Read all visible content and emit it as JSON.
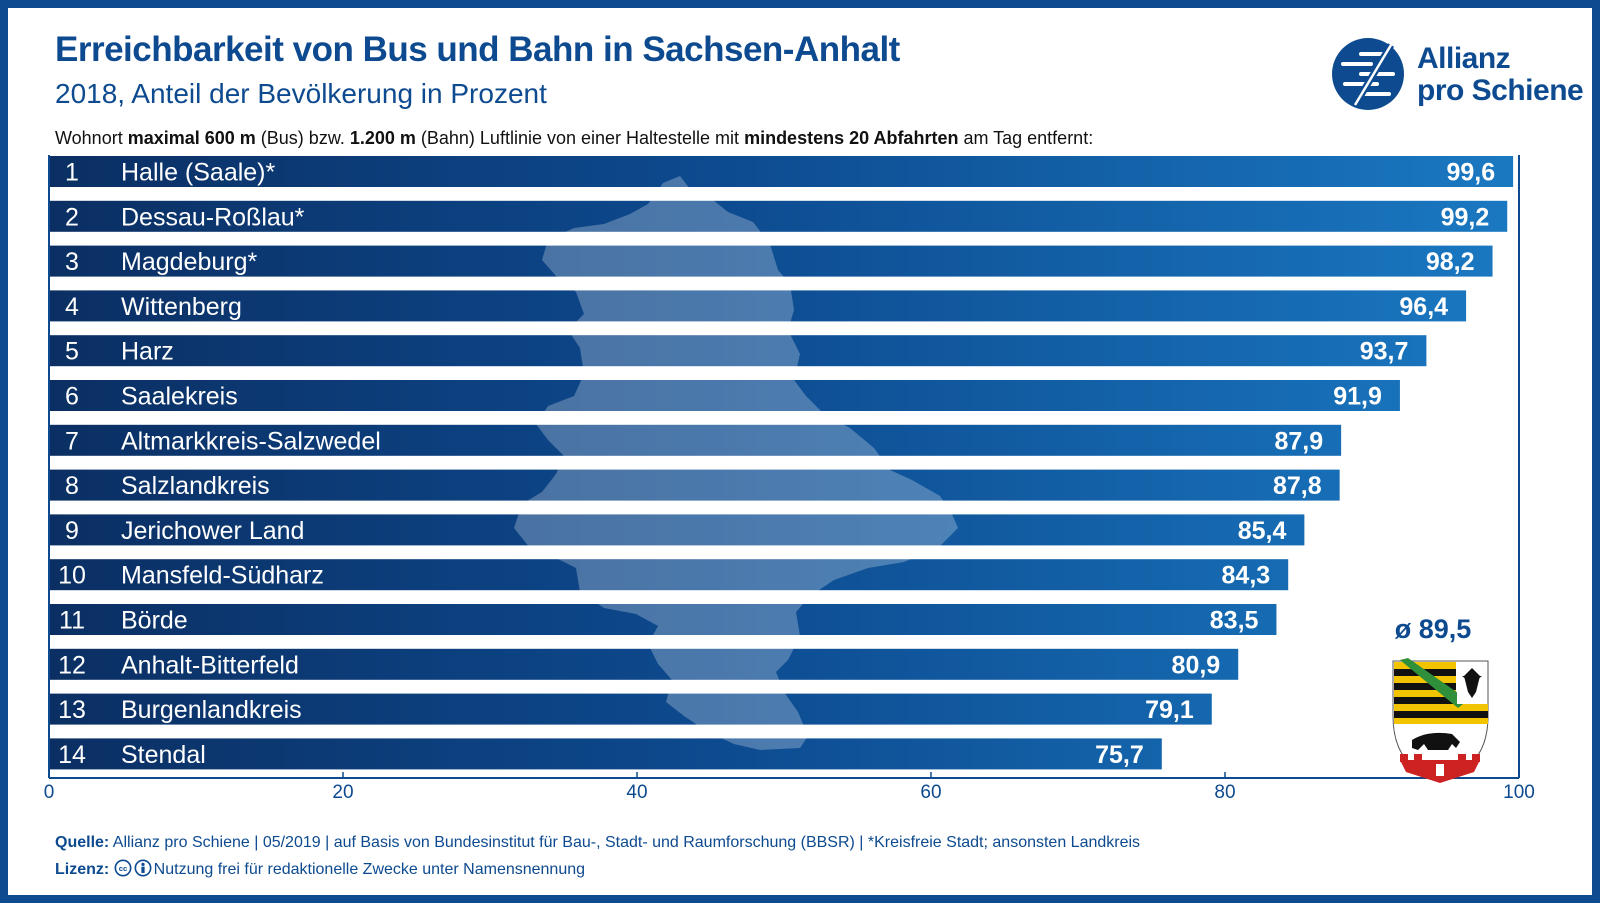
{
  "header": {
    "title": "Erreichbarkeit von Bus und Bahn in Sachsen-Anhalt",
    "subtitle": "2018, Anteil der Bevölkerung in Prozent",
    "description_parts": [
      "Wohnort ",
      "maximal 600 m",
      " (Bus) bzw. ",
      "1.200 m",
      " (Bahn) Luftlinie von einer Haltestelle mit ",
      "mindestens 20 Abfahrten",
      " am Tag entfernt:"
    ]
  },
  "logo": {
    "line1": "Allianz",
    "line2": "pro Schiene",
    "icon": "allianz-pro-schiene-logo-icon"
  },
  "average": {
    "label": "ø 89,5",
    "icon": "sachsen-anhalt-coat-of-arms-icon"
  },
  "chart_data": {
    "type": "bar",
    "orientation": "horizontal",
    "ranks": [
      "1",
      "2",
      "3",
      "4",
      "5",
      "6",
      "7",
      "8",
      "9",
      "10",
      "11",
      "12",
      "13",
      "14"
    ],
    "categories": [
      "Halle (Saale)*",
      "Dessau-Roßlau*",
      "Magdeburg*",
      "Wittenberg",
      "Harz",
      "Saalekreis",
      "Altmarkkreis-Salzwedel",
      "Salzlandkreis",
      "Jerichower Land",
      "Mansfeld-Südharz",
      "Börde",
      "Anhalt-Bitterfeld",
      "Burgenlandkreis",
      "Stendal"
    ],
    "values": [
      99.6,
      99.2,
      98.2,
      96.4,
      93.7,
      91.9,
      87.9,
      87.8,
      85.4,
      84.3,
      83.5,
      80.9,
      79.1,
      75.7
    ],
    "value_labels": [
      "99,6",
      "99,2",
      "98,2",
      "96,4",
      "93,7",
      "91,9",
      "87,9",
      "87,8",
      "85,4",
      "84,3",
      "83,5",
      "80,9",
      "79,1",
      "75,7"
    ],
    "xlim": [
      0,
      100
    ],
    "xticks": [
      0,
      20,
      40,
      60,
      80,
      100
    ],
    "xtick_labels": [
      "0",
      "20",
      "40",
      "60",
      "80",
      "100"
    ],
    "grid": false,
    "colors": {
      "bar_start": "#0b2f63",
      "bar_end": "#1a79c2",
      "axis": "#0d4a8f"
    }
  },
  "footer": {
    "source_label": "Quelle:",
    "source_text": " Allianz pro Schiene | 05/2019 | auf Basis von Bundesinstitut für Bau-, Stadt- und Raumforschung (BBSR) | *Kreisfreie Stadt; ansonsten Landkreis",
    "license_label": "Lizenz:",
    "license_text": "Nutzung frei für redaktionelle Zwecke unter Namensnennung",
    "license_icons": [
      "cc-icon",
      "attribution-icon"
    ]
  },
  "colors": {
    "brand": "#0d4a8f",
    "background": "#ffffff"
  }
}
